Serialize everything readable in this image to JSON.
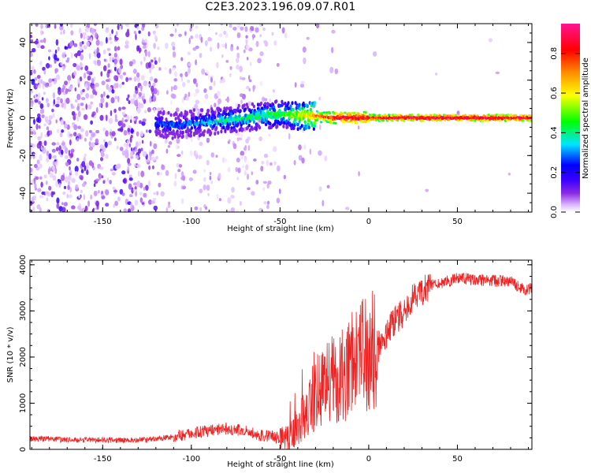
{
  "title": "C2E3.2023.196.09.07.R01",
  "chart_data": [
    {
      "type": "heatmap",
      "xlabel": "Height of straight line (km)",
      "ylabel": "Frequency (Hz)",
      "xlim": [
        -191,
        92
      ],
      "ylim": [
        -50,
        50
      ],
      "x_ticks": [
        -150,
        -100,
        -50,
        0,
        50
      ],
      "y_ticks": [
        -40,
        -20,
        0,
        20,
        40
      ],
      "colorbar": {
        "label": "Normalized spectral amplitude",
        "ticks": [
          "0.0",
          "0.2",
          "0.4",
          "0.6",
          "0.8"
        ],
        "range": [
          0,
          0.95
        ],
        "colors": [
          "#ffffff",
          "#d9b3ff",
          "#8a2be2",
          "#3b00ff",
          "#0000ff",
          "#00e5ff",
          "#00ff00",
          "#ffff00",
          "#ff8c00",
          "#ff0000",
          "#ff1493"
        ]
      },
      "ridge": {
        "x": [
          -120,
          -110,
          -100,
          -90,
          -80,
          -70,
          -60,
          -50,
          -40,
          -30,
          -20,
          -10,
          0,
          20,
          40,
          60,
          80,
          92
        ],
        "freq": [
          -3,
          -4,
          -3,
          -2,
          -1,
          0,
          1,
          2,
          1,
          1,
          0,
          0,
          0,
          0,
          0,
          0,
          0,
          0
        ],
        "amplitude": [
          0.25,
          0.3,
          0.3,
          0.35,
          0.4,
          0.4,
          0.45,
          0.45,
          0.55,
          0.7,
          0.85,
          0.9,
          0.85,
          0.9,
          0.92,
          0.92,
          0.9,
          0.9
        ]
      }
    },
    {
      "type": "line",
      "xlabel": "Height of straight line (km)",
      "ylabel": "SNR (10 * v/v)",
      "xlim": [
        -191,
        92
      ],
      "ylim": [
        0,
        4100
      ],
      "x_ticks": [
        -150,
        -100,
        -50,
        0,
        50
      ],
      "y_ticks": [
        0,
        1000,
        2000,
        3000,
        4000
      ],
      "series_color": "#ee2222",
      "series": [
        {
          "x": [
            -191,
            -180,
            -160,
            -140,
            -125,
            -110,
            -100,
            -90,
            -80,
            -70,
            -60,
            -50,
            -45,
            -40,
            -35,
            -30,
            -25,
            -20,
            -15,
            -10,
            -5,
            0,
            5,
            10,
            15,
            20,
            25,
            30,
            35,
            40,
            45,
            50,
            60,
            70,
            80,
            88,
            92
          ],
          "y": [
            230,
            220,
            200,
            200,
            200,
            280,
            350,
            400,
            450,
            400,
            300,
            250,
            260,
            500,
            900,
            1200,
            1400,
            1500,
            1600,
            1800,
            2000,
            2100,
            2200,
            2500,
            2800,
            3000,
            3300,
            3450,
            3550,
            3600,
            3650,
            3700,
            3680,
            3650,
            3650,
            3450,
            3500
          ]
        }
      ]
    }
  ]
}
